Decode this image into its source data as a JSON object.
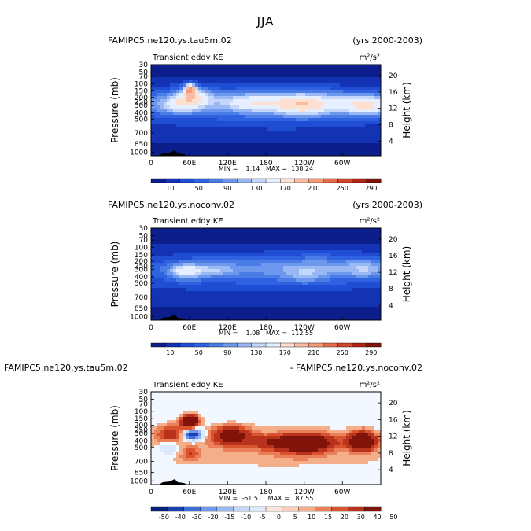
{
  "page_title": "JJA",
  "chart_data": [
    {
      "type": "heatmap",
      "title": "FAMIPC5.ne120.ys.tau5m.02",
      "right_title": "(yrs 2000-2003)",
      "variable": "Transient eddy KE",
      "units": "m²/s²",
      "ylabel": "Pressure (mb)",
      "ylabel_right": "Height (km)",
      "x_ticks": [
        "0",
        "60E",
        "120E",
        "180",
        "120W",
        "60W"
      ],
      "y_ticks": [
        "30",
        "50",
        "70",
        "100",
        "150",
        "200",
        "250",
        "300",
        "400",
        "500",
        "700",
        "850",
        "1000"
      ],
      "y_ticks_right": [
        "20",
        "16",
        "12",
        "8",
        "4"
      ],
      "stats": "MIN =    1.14   MAX =  138.24",
      "min": 1.14,
      "max": 138.24,
      "colorbar_labels": [
        "10",
        "50",
        "90",
        "130",
        "170",
        "210",
        "250",
        "290"
      ]
    },
    {
      "type": "heatmap",
      "title": "FAMIPC5.ne120.ys.noconv.02",
      "right_title": "(yrs 2000-2003)",
      "variable": "Transient eddy KE",
      "units": "m²/s²",
      "ylabel": "Pressure (mb)",
      "ylabel_right": "Height (km)",
      "x_ticks": [
        "0",
        "60E",
        "120E",
        "180",
        "120W",
        "60W"
      ],
      "y_ticks": [
        "30",
        "50",
        "70",
        "100",
        "150",
        "200",
        "250",
        "300",
        "400",
        "500",
        "700",
        "850",
        "1000"
      ],
      "y_ticks_right": [
        "20",
        "16",
        "12",
        "8",
        "4"
      ],
      "stats": "MIN =    1.08   MAX =  112.55",
      "min": 1.08,
      "max": 112.55,
      "colorbar_labels": [
        "10",
        "50",
        "90",
        "130",
        "170",
        "210",
        "250",
        "290"
      ]
    },
    {
      "type": "heatmap",
      "title": "FAMIPC5.ne120.ys.tau5m.02",
      "right_title": "- FAMIPC5.ne120.ys.noconv.02",
      "variable": "Transient eddy KE",
      "units": "m²/s²",
      "ylabel": "Pressure (mb)",
      "ylabel_right": "Height (km)",
      "x_ticks": [
        "0",
        "60E",
        "120E",
        "180",
        "120W",
        "60W"
      ],
      "y_ticks": [
        "30",
        "50",
        "70",
        "100",
        "150",
        "200",
        "250",
        "300",
        "400",
        "500",
        "700",
        "850",
        "1000"
      ],
      "y_ticks_right": [
        "20",
        "16",
        "12",
        "8",
        "4"
      ],
      "stats": "MIN =  -61.51   MAX =   87.55",
      "min": -61.51,
      "max": 87.55,
      "colorbar_labels": [
        "-50",
        "-40",
        "-30",
        "-20",
        "-15",
        "-10",
        "-5",
        "0",
        "5",
        "10",
        "15",
        "20",
        "30",
        "40",
        "50"
      ]
    }
  ],
  "colors": {
    "seq": [
      "#0b1e8c",
      "#1432b4",
      "#1f4ed4",
      "#2e62e0",
      "#4a7ce6",
      "#6e98ee",
      "#9ab8f4",
      "#c4d6f9",
      "#e6efff",
      "#fde0d0",
      "#f9bca0",
      "#f39a76",
      "#e66e4c",
      "#d2462c",
      "#b02412",
      "#80140a"
    ],
    "div": [
      "#06217a",
      "#1840b0",
      "#3d6fd8",
      "#6e98ee",
      "#9ab8f4",
      "#c4d6f9",
      "#dde9fb",
      "#f6e6dc",
      "#fbd0b6",
      "#f5ae8a",
      "#ea7f5a",
      "#d9532f",
      "#b9321b",
      "#80140a"
    ]
  }
}
